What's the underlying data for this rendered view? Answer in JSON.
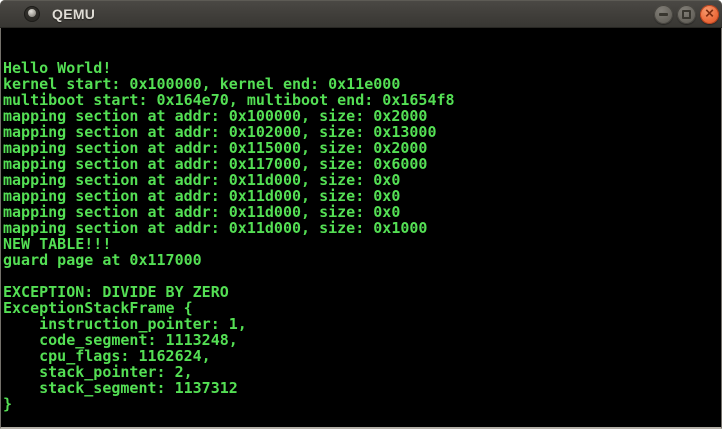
{
  "colors": {
    "term-green": "#54df54",
    "term-bg": "#000000",
    "titlebar-bg": "#403e3a",
    "close-button": "#ed6e3e"
  },
  "titlebar": {
    "title": "QEMU",
    "close_glyph": "✕"
  },
  "terminal": {
    "lines": [
      "",
      "",
      "Hello World!",
      "kernel start: 0x100000, kernel end: 0x11e000",
      "multiboot start: 0x164e70, multiboot end: 0x1654f8",
      "mapping section at addr: 0x100000, size: 0x2000",
      "mapping section at addr: 0x102000, size: 0x13000",
      "mapping section at addr: 0x115000, size: 0x2000",
      "mapping section at addr: 0x117000, size: 0x6000",
      "mapping section at addr: 0x11d000, size: 0x0",
      "mapping section at addr: 0x11d000, size: 0x0",
      "mapping section at addr: 0x11d000, size: 0x0",
      "mapping section at addr: 0x11d000, size: 0x1000",
      "NEW TABLE!!!",
      "guard page at 0x117000",
      "",
      "EXCEPTION: DIVIDE BY ZERO",
      "ExceptionStackFrame {",
      "    instruction_pointer: 1,",
      "    code_segment: 1113248,",
      "    cpu_flags: 1162624,",
      "    stack_pointer: 2,",
      "    stack_segment: 1137312",
      "}",
      ""
    ]
  }
}
